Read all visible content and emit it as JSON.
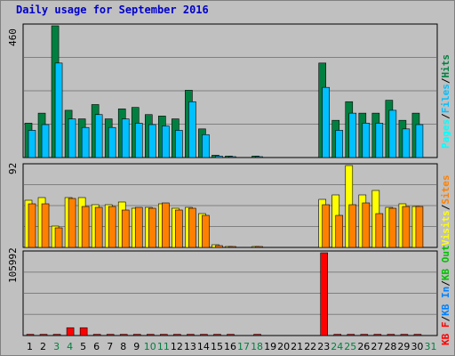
{
  "title": "Daily usage for September 2016",
  "colors": {
    "hits": "#008040",
    "files": "#00c0ff",
    "pages": "#00ffff",
    "visits": "#ffff00",
    "sites": "#ff8000",
    "kbin": "#0080ff",
    "kbout": "#00c000",
    "kbf": "#ff0000",
    "weekday_label": "#000000",
    "weekend_label": "#008040"
  },
  "chart_data": {
    "type": "bar",
    "days": [
      "1",
      "2",
      "3",
      "4",
      "5",
      "6",
      "7",
      "8",
      "9",
      "10",
      "11",
      "12",
      "13",
      "14",
      "15",
      "16",
      "17",
      "18",
      "19",
      "20",
      "21",
      "22",
      "23",
      "24",
      "25",
      "26",
      "27",
      "28",
      "29",
      "30",
      "31"
    ],
    "weekend_days": [
      "3",
      "4",
      "10",
      "11",
      "17",
      "18",
      "24",
      "25",
      "31"
    ],
    "panels": [
      {
        "id": "hits",
        "max_label": "460",
        "ylim": [
          0,
          460
        ],
        "legend": [
          {
            "name": "Pages",
            "color_key": "pages"
          },
          {
            "name": "Files",
            "color_key": "files"
          },
          {
            "name": "Hits",
            "color_key": "hits"
          }
        ],
        "series": [
          {
            "name": "Hits",
            "color_key": "hits",
            "values": [
              120,
              155,
              460,
              165,
              135,
              185,
              135,
              170,
              175,
              150,
              145,
              135,
              235,
              100,
              8,
              5,
              0,
              5,
              0,
              0,
              0,
              0,
              330,
              130,
              195,
              155,
              155,
              200,
              130,
              155,
              0
            ]
          },
          {
            "name": "Files",
            "color_key": "files",
            "values": [
              95,
              115,
              330,
              135,
              105,
              150,
              105,
              135,
              120,
              115,
              110,
              95,
              195,
              80,
              5,
              2,
              0,
              2,
              0,
              0,
              0,
              0,
              245,
              95,
              155,
              120,
              120,
              165,
              100,
              115,
              0
            ]
          }
        ]
      },
      {
        "id": "visits",
        "max_label": "92",
        "ylim": [
          0,
          92
        ],
        "legend": [
          {
            "name": "Visits",
            "color_key": "visits"
          },
          {
            "name": "Sites",
            "color_key": "sites"
          }
        ],
        "series": [
          {
            "name": "Visits",
            "color_key": "visits",
            "values": [
              53,
              56,
              24,
              56,
              56,
              48,
              48,
              51,
              44,
              45,
              49,
              44,
              45,
              38,
              3,
              1,
              0,
              1,
              0,
              0,
              0,
              0,
              54,
              59,
              92,
              59,
              64,
              45,
              49,
              46,
              0
            ]
          },
          {
            "name": "Sites",
            "color_key": "sites",
            "values": [
              49,
              49,
              22,
              55,
              46,
              45,
              46,
              42,
              45,
              44,
              50,
              42,
              44,
              36,
              2,
              1,
              0,
              1,
              0,
              0,
              0,
              0,
              48,
              36,
              48,
              50,
              38,
              44,
              46,
              46,
              0
            ]
          }
        ]
      },
      {
        "id": "kbytes",
        "max_label": "105992",
        "ylim": [
          0,
          105992
        ],
        "legend": [
          {
            "name": "KB F",
            "color_key": "kbf"
          },
          {
            "name": "KB In",
            "color_key": "kbin"
          },
          {
            "name": "KB Out",
            "color_key": "kbout"
          }
        ],
        "series": [
          {
            "name": "KB F",
            "color_key": "kbf",
            "values": [
              1500,
              1500,
              1500,
              10000,
              10000,
              1500,
              1500,
              1500,
              1500,
              1500,
              1500,
              1500,
              1500,
              1500,
              1500,
              1500,
              0,
              1500,
              0,
              0,
              0,
              0,
              105992,
              1500,
              1500,
              1500,
              1500,
              1500,
              1500,
              1500,
              0
            ]
          }
        ]
      }
    ]
  }
}
